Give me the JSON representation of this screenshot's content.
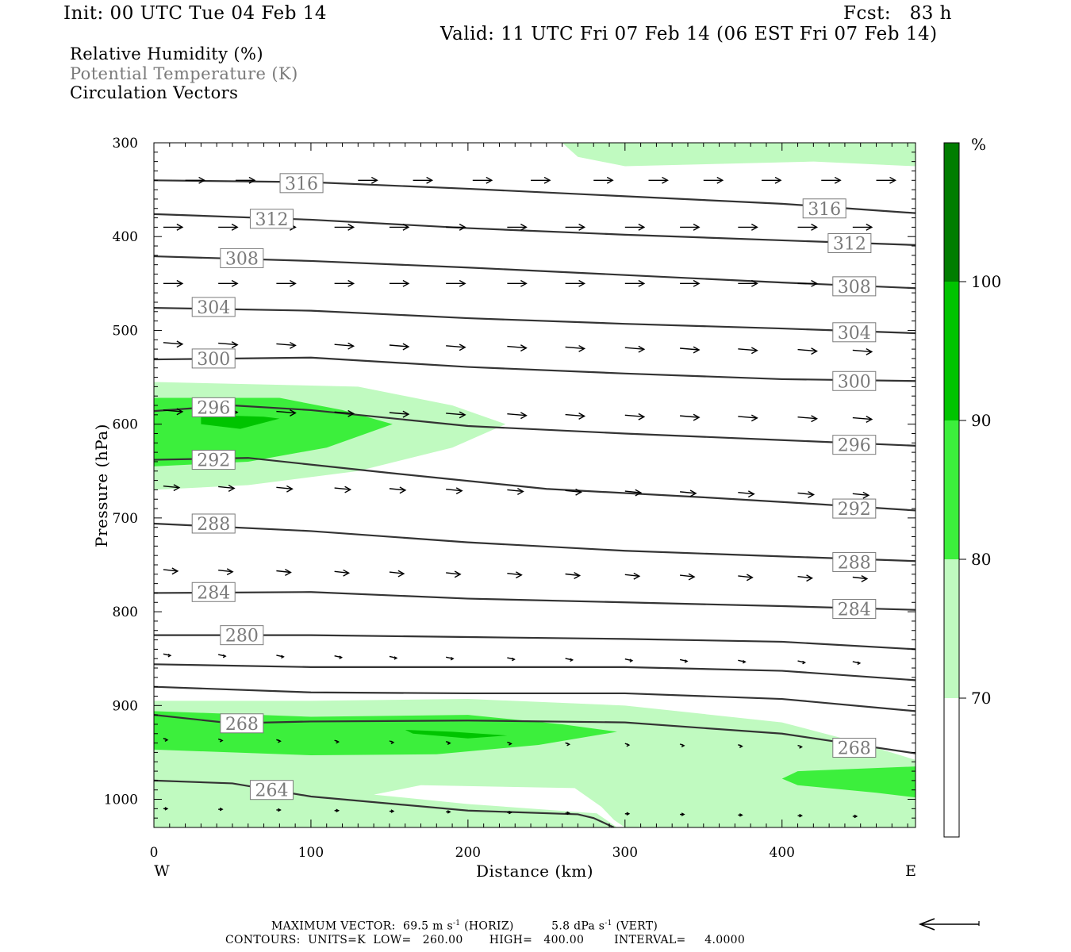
{
  "header": {
    "init": "Init: 00 UTC Tue 04 Feb 14",
    "fcst": "Fcst:   83 h",
    "valid": "Valid: 11 UTC Fri 07 Feb 14 (06 EST Fri 07 Feb 14)"
  },
  "legend": {
    "line1": "Relative Humidity (%)",
    "line2": "Potential Temperature (K)",
    "line3": "Circulation Vectors"
  },
  "colors": {
    "rh70": "#c0fac0",
    "rh80": "#3cef3c",
    "rh90": "#00c400",
    "rh100": "#007d00",
    "contour": "#333333",
    "label_gray": "#7a7a7a"
  },
  "colorbar": {
    "unit": "%",
    "ticks": [
      "100",
      "90",
      "80",
      "70"
    ]
  },
  "footer": {
    "max_vector_label": "MAXIMUM VECTOR:",
    "max_vector_horiz_value": "69.5",
    "max_vector_horiz_unit": "m s",
    "max_vector_horiz_tag": "(HORIZ)",
    "max_vector_vert_value": "5.8",
    "max_vector_vert_unit": "dPa s",
    "max_vector_vert_tag": "(VERT)",
    "exponent": "-1",
    "contours": "CONTOURS:  UNITS=K  LOW=   260.00       HIGH=   400.00        INTERVAL=     4.0000"
  },
  "chart_data": {
    "type": "cross-section",
    "xlabel": "Distance (km)",
    "ylabel": "Pressure (hPa)",
    "x_ticks": [
      0,
      100,
      200,
      300,
      400
    ],
    "y_ticks": [
      300,
      400,
      500,
      600,
      700,
      800,
      900,
      1000
    ],
    "xlim": [
      0,
      485
    ],
    "ylim": [
      300,
      1030
    ],
    "x_end_labels": {
      "left": "W",
      "right": "E"
    },
    "theta_contours": [
      {
        "value": 316,
        "labels_at": [
          [
            94,
            343
          ],
          [
            427,
            370
          ]
        ],
        "points": [
          [
            0,
            340
          ],
          [
            100,
            342
          ],
          [
            200,
            349
          ],
          [
            300,
            357
          ],
          [
            400,
            365
          ],
          [
            485,
            375
          ]
        ]
      },
      {
        "value": 312,
        "labels_at": [
          [
            75,
            381
          ],
          [
            443,
            407
          ]
        ],
        "points": [
          [
            0,
            376
          ],
          [
            100,
            382
          ],
          [
            200,
            391
          ],
          [
            300,
            398
          ],
          [
            400,
            404
          ],
          [
            485,
            409
          ]
        ]
      },
      {
        "value": 308,
        "labels_at": [
          [
            56,
            423
          ],
          [
            446,
            453
          ]
        ],
        "points": [
          [
            0,
            421
          ],
          [
            100,
            426
          ],
          [
            200,
            433
          ],
          [
            300,
            441
          ],
          [
            400,
            449
          ],
          [
            485,
            455
          ]
        ]
      },
      {
        "value": 304,
        "labels_at": [
          [
            38,
            475
          ],
          [
            446,
            502
          ]
        ],
        "points": [
          [
            0,
            476
          ],
          [
            100,
            479
          ],
          [
            200,
            487
          ],
          [
            300,
            493
          ],
          [
            400,
            498
          ],
          [
            485,
            503
          ]
        ]
      },
      {
        "value": 300,
        "labels_at": [
          [
            38,
            530
          ],
          [
            446,
            554
          ]
        ],
        "points": [
          [
            0,
            531
          ],
          [
            100,
            529
          ],
          [
            200,
            539
          ],
          [
            300,
            546
          ],
          [
            400,
            552
          ],
          [
            485,
            554
          ]
        ]
      },
      {
        "value": 296,
        "labels_at": [
          [
            38,
            582
          ],
          [
            446,
            622
          ]
        ],
        "points": [
          [
            0,
            586
          ],
          [
            50,
            580
          ],
          [
            100,
            585
          ],
          [
            200,
            602
          ],
          [
            300,
            610
          ],
          [
            400,
            617
          ],
          [
            485,
            623
          ]
        ]
      },
      {
        "value": 292,
        "labels_at": [
          [
            38,
            638
          ],
          [
            446,
            690
          ]
        ],
        "points": [
          [
            0,
            638
          ],
          [
            60,
            636
          ],
          [
            150,
            652
          ],
          [
            250,
            669
          ],
          [
            350,
            678
          ],
          [
            420,
            685
          ],
          [
            485,
            692
          ]
        ]
      },
      {
        "value": 288,
        "labels_at": [
          [
            38,
            706
          ],
          [
            446,
            747
          ]
        ],
        "points": [
          [
            0,
            706
          ],
          [
            100,
            714
          ],
          [
            200,
            726
          ],
          [
            300,
            735
          ],
          [
            400,
            741
          ],
          [
            485,
            746
          ]
        ]
      },
      {
        "value": 284,
        "labels_at": [
          [
            38,
            779
          ],
          [
            446,
            797
          ]
        ],
        "points": [
          [
            0,
            780
          ],
          [
            100,
            779
          ],
          [
            200,
            786
          ],
          [
            300,
            790
          ],
          [
            400,
            794
          ],
          [
            485,
            798
          ]
        ]
      },
      {
        "value": 280,
        "labels_at": [
          [
            56,
            825
          ]
        ],
        "points": [
          [
            0,
            825
          ],
          [
            100,
            825
          ],
          [
            200,
            827
          ],
          [
            300,
            829
          ],
          [
            400,
            832
          ],
          [
            485,
            840
          ]
        ]
      },
      {
        "value": 276,
        "labels_at": [],
        "points": [
          [
            0,
            856
          ],
          [
            100,
            859
          ],
          [
            200,
            859
          ],
          [
            300,
            859
          ],
          [
            400,
            863
          ],
          [
            485,
            873
          ]
        ]
      },
      {
        "value": 272,
        "labels_at": [],
        "points": [
          [
            0,
            880
          ],
          [
            100,
            886
          ],
          [
            200,
            887
          ],
          [
            300,
            887
          ],
          [
            400,
            893
          ],
          [
            485,
            906
          ]
        ]
      },
      {
        "value": 268,
        "labels_at": [
          [
            56,
            919
          ],
          [
            446,
            945
          ]
        ],
        "points": [
          [
            0,
            910
          ],
          [
            50,
            919
          ],
          [
            100,
            917
          ],
          [
            200,
            916
          ],
          [
            300,
            918
          ],
          [
            400,
            930
          ],
          [
            485,
            951
          ]
        ]
      },
      {
        "value": 264,
        "labels_at": [
          [
            75,
            990
          ]
        ],
        "points": [
          [
            0,
            980
          ],
          [
            50,
            983
          ],
          [
            100,
            997
          ],
          [
            200,
            1012
          ],
          [
            270,
            1016
          ],
          [
            280,
            1020
          ],
          [
            293,
            1030
          ]
        ]
      }
    ],
    "rh_bands": [
      {
        "level": ">=70",
        "regions": [
          [
            [
              260,
              300
            ],
            [
              485,
              300
            ],
            [
              485,
              325
            ],
            [
              420,
              320
            ],
            [
              300,
              325
            ],
            [
              270,
              315
            ]
          ],
          [
            [
              0,
              555
            ],
            [
              130,
              560
            ],
            [
              190,
              580
            ],
            [
              224,
              600
            ],
            [
              190,
              625
            ],
            [
              130,
              650
            ],
            [
              60,
              665
            ],
            [
              0,
              670
            ]
          ],
          [
            [
              0,
              895
            ],
            [
              100,
              895
            ],
            [
              200,
              893
            ],
            [
              300,
              900
            ],
            [
              400,
              918
            ],
            [
              450,
              940
            ],
            [
              485,
              958
            ],
            [
              485,
              1030
            ],
            [
              300,
              1030
            ],
            [
              293,
              1022
            ],
            [
              285,
              1008
            ],
            [
              268,
              988
            ],
            [
              170,
              985
            ],
            [
              140,
              995
            ],
            [
              200,
              1005
            ],
            [
              282,
              1015
            ],
            [
              295,
              1030
            ],
            [
              0,
              1030
            ]
          ]
        ]
      },
      {
        "level": ">=80",
        "regions": [
          [
            [
              0,
              572
            ],
            [
              80,
              572
            ],
            [
              120,
              585
            ],
            [
              152,
              600
            ],
            [
              110,
              625
            ],
            [
              60,
              640
            ],
            [
              0,
              645
            ]
          ],
          [
            [
              0,
              906
            ],
            [
              100,
              912
            ],
            [
              200,
              910
            ],
            [
              260,
              920
            ],
            [
              295,
              928
            ],
            [
              245,
              942
            ],
            [
              180,
              952
            ],
            [
              100,
              953
            ],
            [
              0,
              947
            ]
          ],
          [
            [
              410,
              970
            ],
            [
              485,
              965
            ],
            [
              485,
              998
            ],
            [
              460,
              993
            ],
            [
              410,
              985
            ],
            [
              400,
              978
            ]
          ]
        ]
      },
      {
        "level": ">=90",
        "regions": [
          [
            [
              30,
              590
            ],
            [
              70,
              592
            ],
            [
              80,
              594
            ],
            [
              55,
              605
            ],
            [
              30,
              600
            ]
          ],
          [
            [
              160,
              926
            ],
            [
              190,
              928
            ],
            [
              225,
              932
            ],
            [
              200,
              935
            ],
            [
              165,
              930
            ]
          ]
        ]
      }
    ],
    "vectors": {
      "rows": [
        {
          "p": 340,
          "x": [
            20,
            52,
            90,
            130,
            165,
            203,
            240,
            280,
            315,
            350,
            387,
            425,
            460
          ]
        },
        {
          "p": 390,
          "x": [
            6,
            41,
            78,
            115,
            150,
            186,
            225,
            262,
            300,
            335,
            372,
            410,
            445
          ]
        },
        {
          "p": 450,
          "x": [
            6,
            41,
            78,
            115,
            150,
            186,
            225,
            262,
            300,
            335,
            372,
            410,
            445
          ]
        },
        {
          "p": 513,
          "x": [
            6,
            41,
            78,
            115,
            150,
            186,
            225,
            262,
            300,
            335,
            372,
            410,
            445
          ]
        },
        {
          "p": 585,
          "x": [
            6,
            41,
            78,
            115,
            150,
            186,
            225,
            262,
            300,
            335,
            372,
            410,
            445
          ]
        },
        {
          "p": 666,
          "x": [
            6,
            41,
            78,
            115,
            150,
            186,
            225,
            262,
            300,
            335,
            372,
            410,
            445
          ]
        },
        {
          "p": 755,
          "x": [
            6,
            41,
            78,
            115,
            150,
            186,
            225,
            262,
            300,
            335,
            372,
            410,
            445
          ]
        },
        {
          "p": 845,
          "x": [
            6,
            41,
            78,
            115,
            150,
            186,
            225,
            262,
            300,
            335,
            372,
            410,
            445
          ]
        },
        {
          "p": 935,
          "x": [
            6,
            41,
            78,
            115,
            150,
            186,
            225,
            262,
            300,
            335,
            372,
            410,
            445
          ]
        },
        {
          "p": 1010,
          "x": [
            6,
            41,
            78,
            115,
            150,
            186,
            225,
            262,
            300,
            335,
            372,
            410,
            445
          ]
        }
      ]
    }
  }
}
